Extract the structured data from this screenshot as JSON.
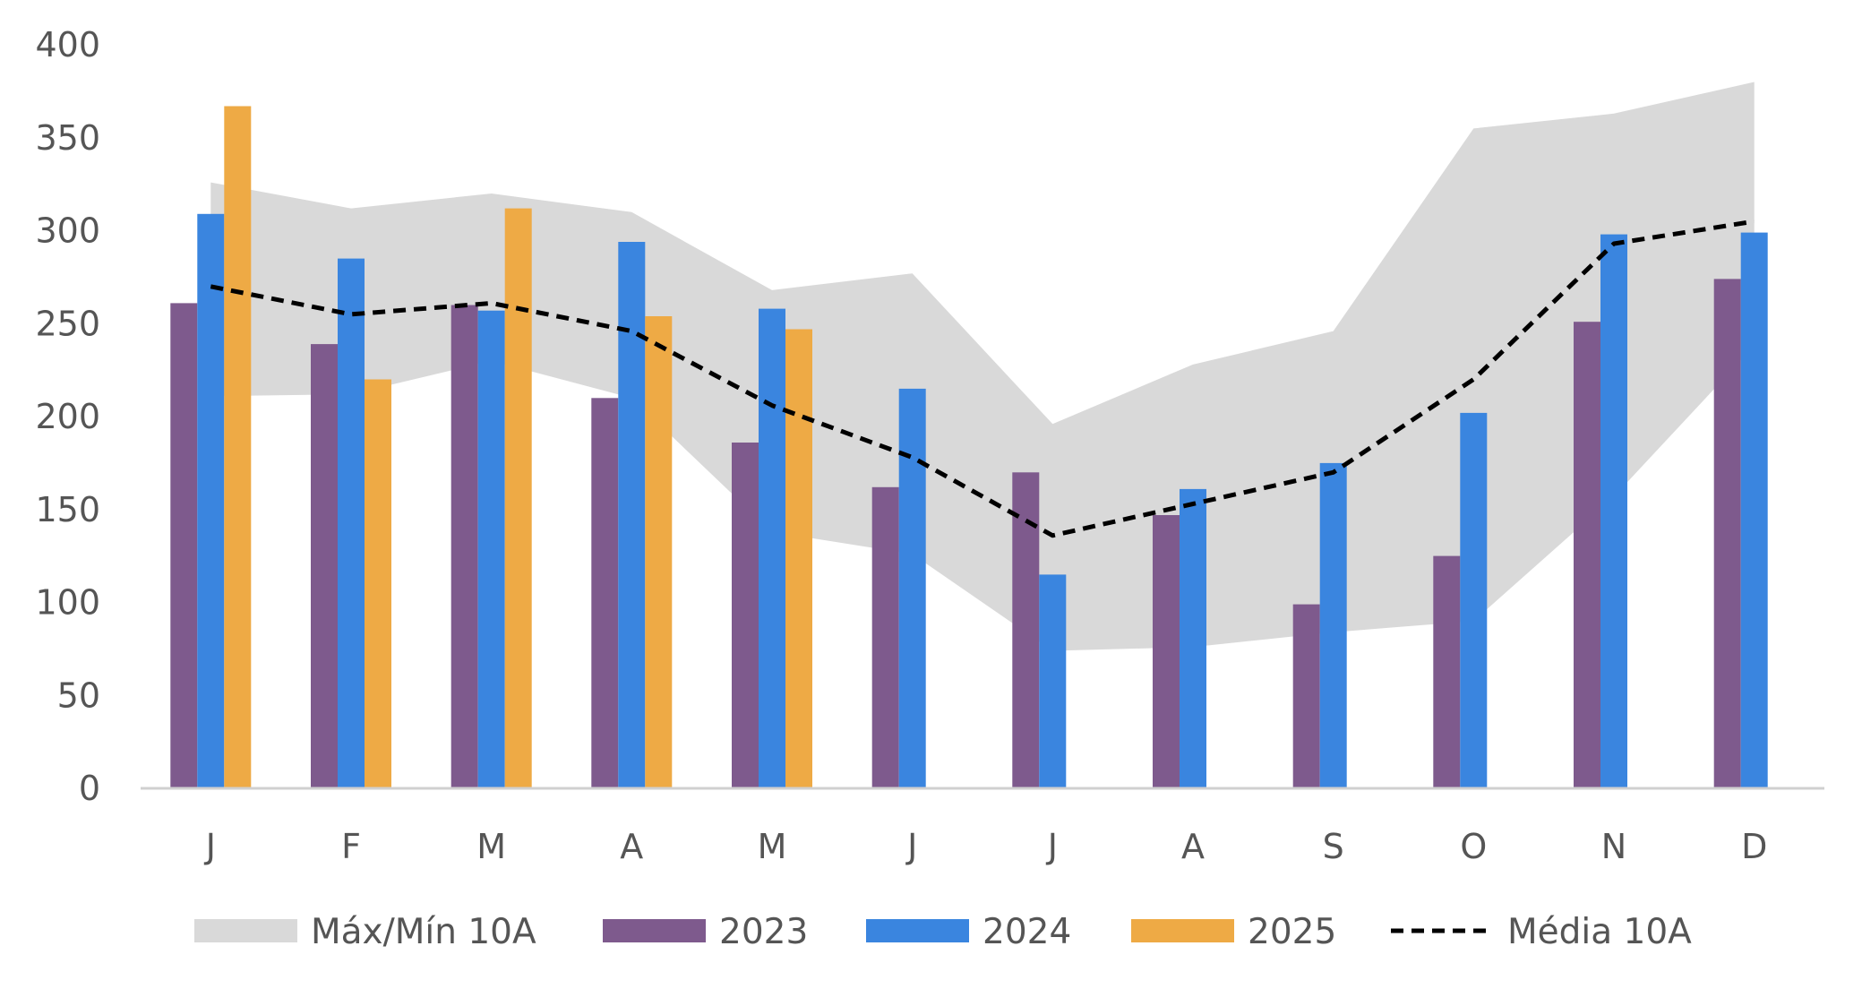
{
  "chart_data": {
    "type": "bar",
    "categories": [
      "J",
      "F",
      "M",
      "A",
      "M",
      "J",
      "J",
      "A",
      "S",
      "O",
      "N",
      "D"
    ],
    "ylim": [
      0,
      400
    ],
    "yticks": [
      0,
      50,
      100,
      150,
      200,
      250,
      300,
      350,
      400
    ],
    "grid": false,
    "legend_position": "bottom",
    "band": {
      "name": "Máx/Mín 10A",
      "color": "#d9d9d9",
      "max": [
        326,
        312,
        320,
        310,
        268,
        277,
        196,
        228,
        246,
        355,
        363,
        380
      ],
      "min": [
        211,
        212,
        230,
        210,
        138,
        126,
        74,
        76,
        84,
        90,
        157,
        238
      ]
    },
    "series": [
      {
        "name": "2023",
        "color": "#7e5a8d",
        "values": [
          261,
          239,
          260,
          210,
          186,
          162,
          170,
          147,
          99,
          125,
          251,
          274
        ]
      },
      {
        "name": "2024",
        "color": "#3a85df",
        "values": [
          309,
          285,
          257,
          294,
          258,
          215,
          115,
          161,
          175,
          202,
          298,
          299
        ]
      },
      {
        "name": "2025",
        "color": "#eeaa45",
        "values": [
          367,
          220,
          312,
          254,
          247,
          null,
          null,
          null,
          null,
          null,
          null,
          null
        ]
      }
    ],
    "line": {
      "name": "Média 10A",
      "color": "#000000",
      "style": "dashed",
      "values": [
        270,
        255,
        261,
        246,
        206,
        178,
        136,
        153,
        170,
        220,
        293,
        305
      ]
    }
  }
}
